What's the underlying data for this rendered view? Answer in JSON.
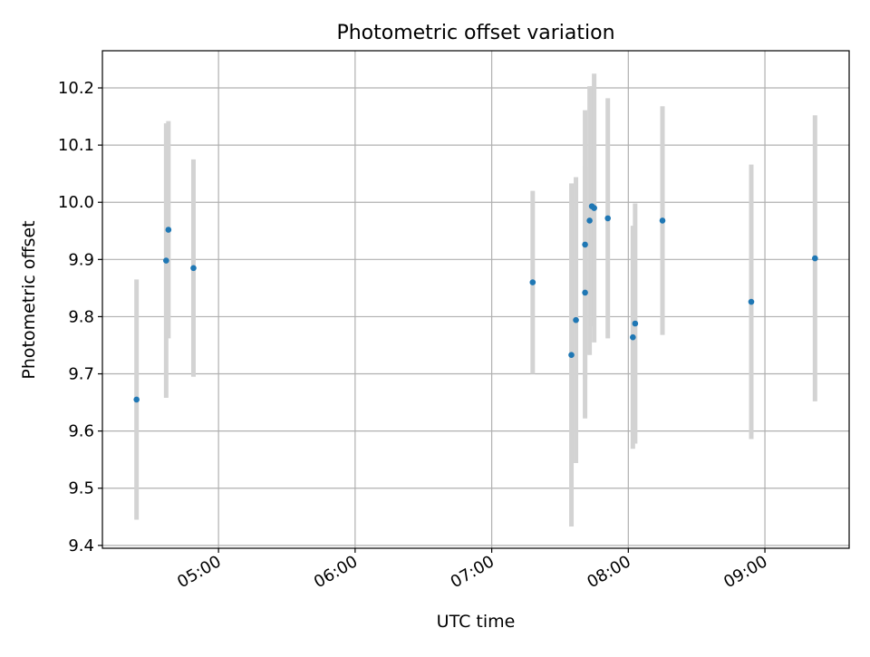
{
  "chart_data": {
    "type": "scatter",
    "title": "Photometric offset variation",
    "xlabel": "UTC time",
    "ylabel": "Photometric offset",
    "x_tick_labels": [
      "05:00",
      "06:00",
      "07:00",
      "08:00",
      "09:00"
    ],
    "y_tick_labels": [
      "9.4",
      "9.5",
      "9.6",
      "9.7",
      "9.8",
      "9.9",
      "10.0",
      "10.1",
      "10.2"
    ],
    "xlim": [
      "04:09",
      "09:37"
    ],
    "ylim": [
      9.395,
      10.265
    ],
    "grid": true,
    "point_color": "#1f77b4",
    "errorbar_color": "#d3d3d3",
    "points": [
      {
        "time": "04:24",
        "y": 9.655,
        "err": 0.21
      },
      {
        "time": "04:37",
        "y": 9.898,
        "err": 0.24
      },
      {
        "time": "04:38",
        "y": 9.952,
        "err": 0.19
      },
      {
        "time": "04:49",
        "y": 9.885,
        "err": 0.19
      },
      {
        "time": "07:18",
        "y": 9.86,
        "err": 0.16
      },
      {
        "time": "07:35",
        "y": 9.733,
        "err": 0.3
      },
      {
        "time": "07:37",
        "y": 9.794,
        "err": 0.25
      },
      {
        "time": "07:41",
        "y": 9.926,
        "err": 0.235
      },
      {
        "time": "07:41",
        "y": 9.842,
        "err": 0.22
      },
      {
        "time": "07:43",
        "y": 9.968,
        "err": 0.235
      },
      {
        "time": "07:44",
        "y": 9.993,
        "err": 0.21
      },
      {
        "time": "07:45",
        "y": 9.99,
        "err": 0.235
      },
      {
        "time": "07:51",
        "y": 9.972,
        "err": 0.21
      },
      {
        "time": "08:02",
        "y": 9.764,
        "err": 0.195
      },
      {
        "time": "08:03",
        "y": 9.788,
        "err": 0.21
      },
      {
        "time": "08:15",
        "y": 9.968,
        "err": 0.2
      },
      {
        "time": "08:54",
        "y": 9.826,
        "err": 0.24
      },
      {
        "time": "09:22",
        "y": 9.902,
        "err": 0.25
      }
    ]
  }
}
